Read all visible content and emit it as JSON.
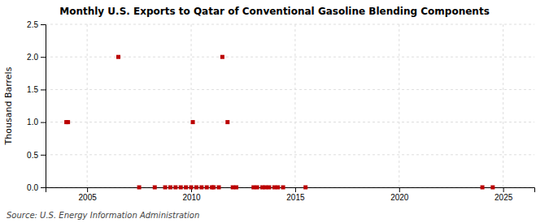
{
  "chart_data": {
    "type": "scatter",
    "title": "Monthly U.S. Exports to Qatar of Conventional Gasoline Blending Components",
    "ylabel": "Thousand Barrels",
    "annotations": [
      "Source: U.S. Energy Information Administration"
    ],
    "x": [
      2004.0,
      2004.08,
      2006.5,
      2007.5,
      2008.25,
      2008.75,
      2009.0,
      2009.25,
      2009.5,
      2009.75,
      2010.0,
      2010.08,
      2010.25,
      2010.5,
      2010.75,
      2011.0,
      2011.08,
      2011.33,
      2011.5,
      2011.75,
      2012.0,
      2012.17,
      2013.0,
      2013.17,
      2013.42,
      2013.58,
      2013.75,
      2014.0,
      2014.17,
      2014.42,
      2015.5,
      2024.0,
      2024.5
    ],
    "values": [
      1.0,
      1.0,
      2.0,
      0.0,
      0.0,
      0.0,
      0.0,
      0.0,
      0.0,
      0.0,
      0.0,
      1.0,
      0.0,
      0.0,
      0.0,
      0.0,
      0.0,
      0.0,
      2.0,
      1.0,
      0.0,
      0.0,
      0.0,
      0.0,
      0.0,
      0.0,
      0.0,
      0.0,
      0.0,
      0.0,
      0.0,
      0.0,
      0.0
    ],
    "color": "#bb0000",
    "marker": "square",
    "xlim": [
      2003.0,
      2026.5
    ],
    "xticks": [
      2005,
      2010,
      2015,
      2020,
      2025
    ],
    "ylim": [
      0,
      2.5
    ],
    "yticks": [
      {
        "value": 0.0,
        "label": "0.0"
      },
      0.5,
      {
        "value": 1.0,
        "label": "1.0"
      },
      1.5,
      {
        "value": 2.0,
        "label": "2.0"
      },
      2.5
    ],
    "grid": true
  }
}
